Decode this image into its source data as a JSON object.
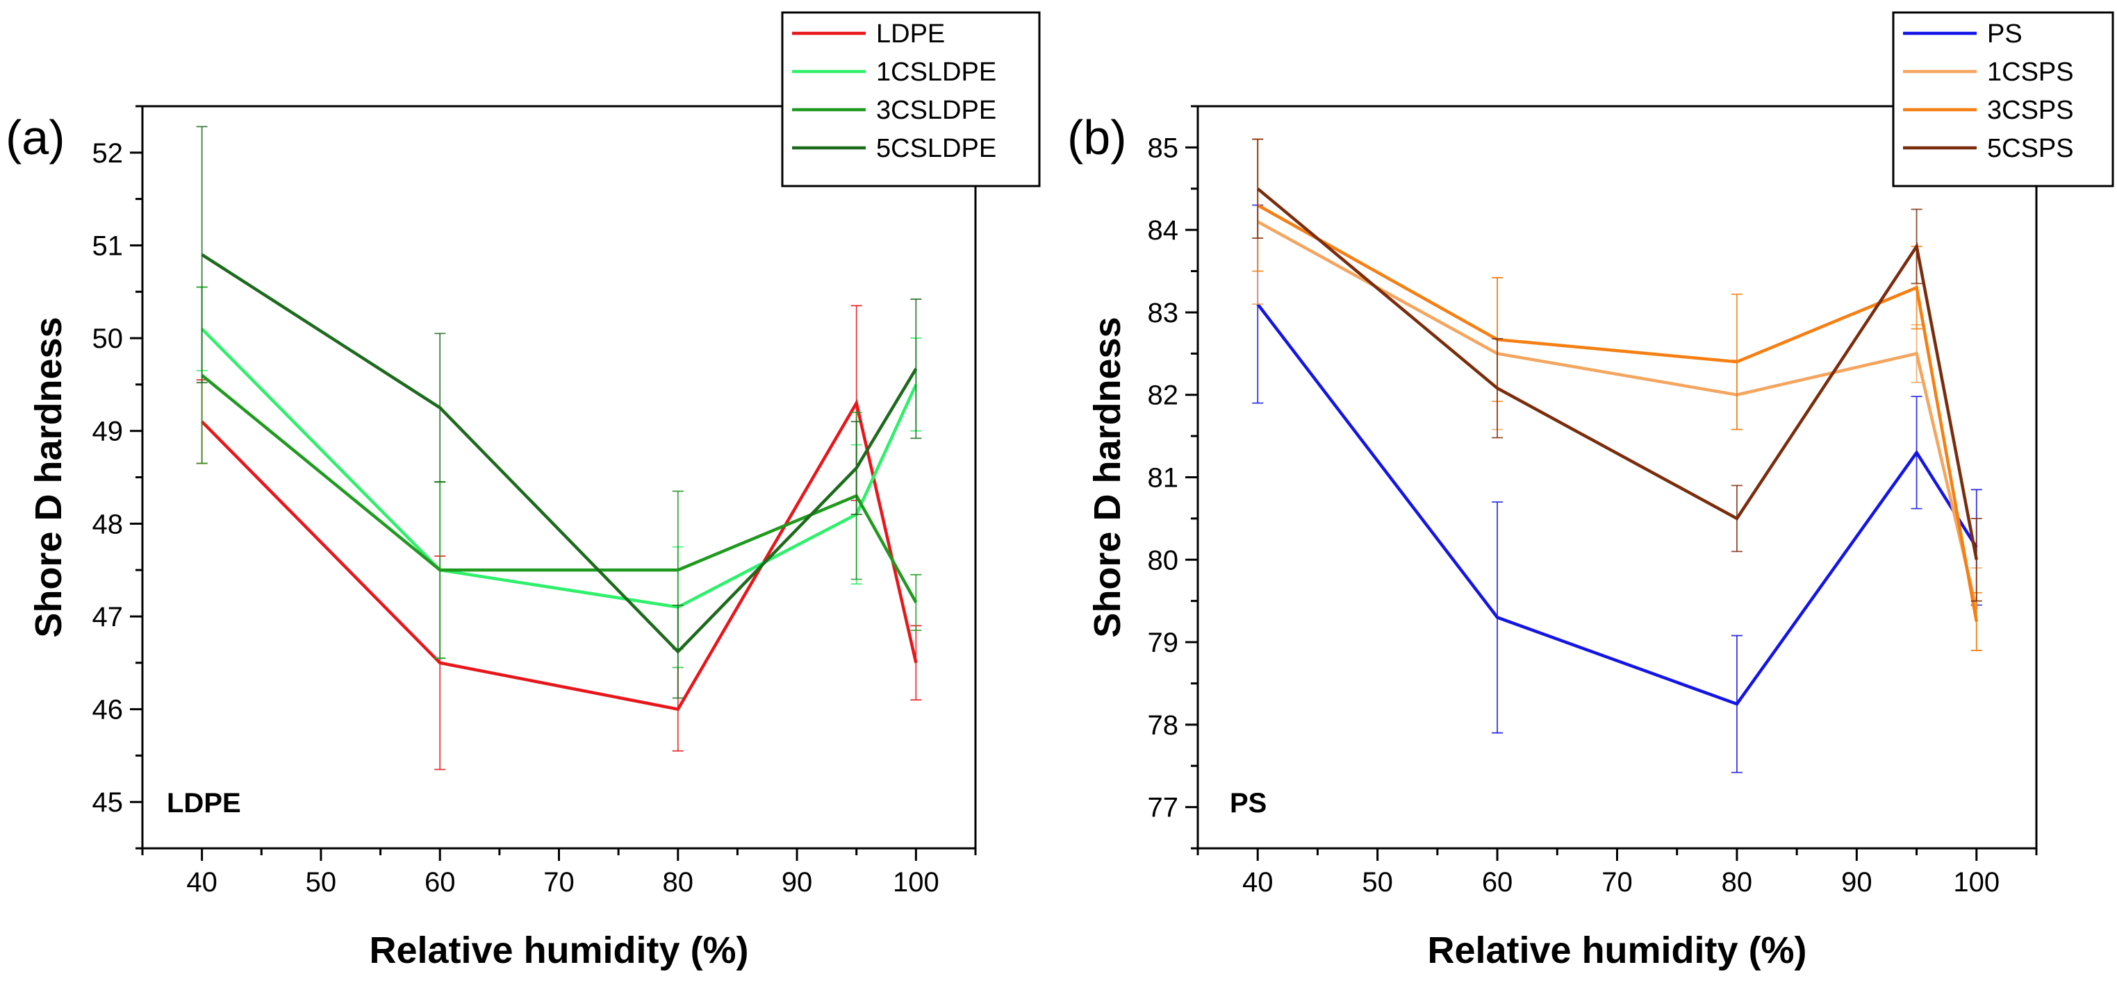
{
  "chart_data": [
    {
      "type": "line",
      "panel_label": "(a)",
      "inset_label": "LDPE",
      "xlabel": "Relative humidity (%)",
      "ylabel": "Shore D hardness",
      "xlim": [
        35,
        105
      ],
      "ylim": [
        44.5,
        52.5
      ],
      "xticks": [
        40,
        50,
        60,
        70,
        80,
        90,
        100
      ],
      "yticks": [
        45,
        46,
        47,
        48,
        49,
        50,
        51,
        52
      ],
      "x": [
        40,
        60,
        80,
        95,
        100
      ],
      "legend_position": "top-right (outside)",
      "series": [
        {
          "name": "LDPE",
          "color": "#e8161b",
          "values": [
            49.1,
            46.5,
            46.0,
            49.3,
            46.5
          ],
          "errors": [
            0.45,
            1.15,
            0.45,
            1.05,
            0.4
          ]
        },
        {
          "name": "1CSLDPE",
          "color": "#2ef06b",
          "values": [
            50.1,
            47.5,
            47.1,
            48.1,
            49.5
          ],
          "errors": [
            0.45,
            0.95,
            0.65,
            0.75,
            0.5
          ]
        },
        {
          "name": "3CSLDPE",
          "color": "#1f9a1f",
          "values": [
            49.6,
            47.5,
            47.5,
            48.3,
            47.15
          ],
          "errors": [
            0.95,
            0.95,
            0.85,
            0.9,
            0.3
          ]
        },
        {
          "name": "5CSLDPE",
          "color": "#1c6a1c",
          "values": [
            50.9,
            49.25,
            46.62,
            48.6,
            49.67
          ],
          "errors": [
            1.38,
            0.8,
            0.5,
            0.5,
            0.75
          ]
        }
      ]
    },
    {
      "type": "line",
      "panel_label": "(b)",
      "inset_label": "PS",
      "xlabel": "Relative humidity (%)",
      "ylabel": "Shore D hardness",
      "xlim": [
        35,
        105
      ],
      "ylim": [
        76.5,
        85.5
      ],
      "xticks": [
        40,
        50,
        60,
        70,
        80,
        90,
        100
      ],
      "yticks": [
        77,
        78,
        79,
        80,
        81,
        82,
        83,
        84,
        85
      ],
      "x": [
        40,
        60,
        80,
        95,
        100
      ],
      "legend_position": "top-right (outside)",
      "series": [
        {
          "name": "PS",
          "color": "#1414e6",
          "values": [
            83.1,
            79.3,
            78.25,
            81.3,
            80.15
          ],
          "errors": [
            1.2,
            1.4,
            0.83,
            0.68,
            0.7
          ]
        },
        {
          "name": "1CSPS",
          "color": "#f4a55e",
          "values": [
            84.1,
            82.5,
            82.0,
            82.5,
            79.4
          ],
          "errors": [
            1.0,
            0.92,
            0.42,
            0.35,
            0.5
          ]
        },
        {
          "name": "3CSPS",
          "color": "#f57f12",
          "values": [
            84.3,
            82.67,
            82.4,
            83.3,
            79.25
          ],
          "errors": [
            0.8,
            0.75,
            0.82,
            0.5,
            0.35
          ]
        },
        {
          "name": "5CSPS",
          "color": "#7a2d0c",
          "values": [
            84.5,
            82.08,
            80.5,
            83.8,
            80.0
          ],
          "errors": [
            0.6,
            0.6,
            0.4,
            0.45,
            0.5
          ]
        }
      ]
    }
  ]
}
